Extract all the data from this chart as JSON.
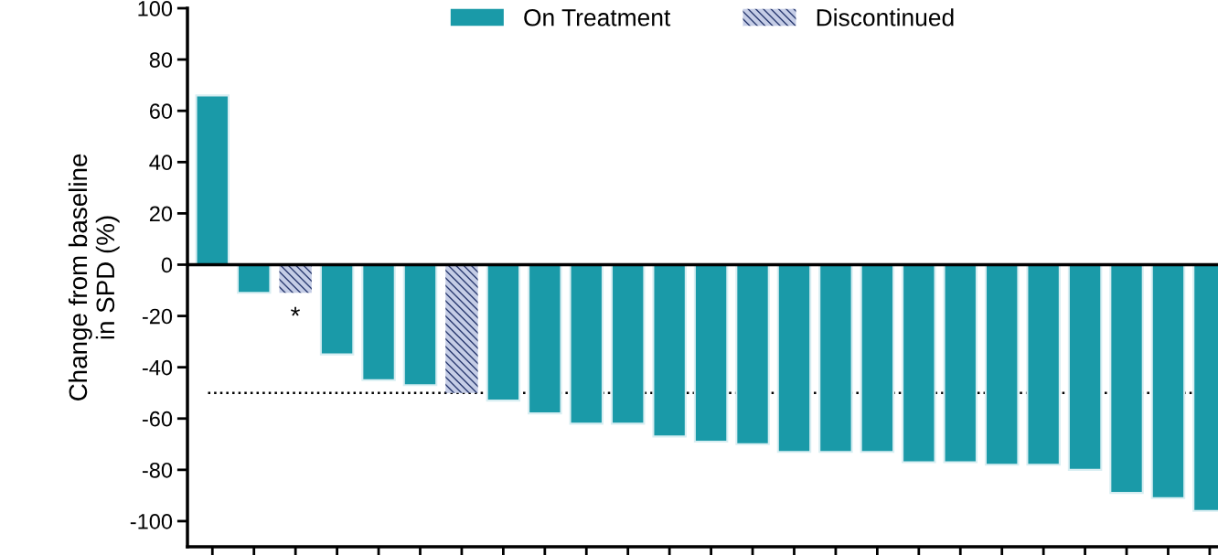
{
  "chart_data": {
    "type": "bar",
    "ylabel": "Change from baseline\nin SPD (%)",
    "categories": [
      null,
      null,
      null,
      null,
      null,
      null,
      null,
      null,
      null,
      null,
      null,
      null,
      null,
      null,
      null,
      null,
      null,
      null,
      null,
      null,
      null,
      null,
      null,
      null,
      null
    ],
    "series": [
      {
        "name": "On Treatment",
        "color": "#1a9aa8",
        "values": [
          66,
          -11,
          null,
          -35,
          -45,
          -47,
          null,
          -53,
          -58,
          -62,
          -62,
          -67,
          -69,
          -70,
          -73,
          -73,
          -73,
          -77,
          -77,
          -78,
          -78,
          -80,
          -89,
          -91,
          -96
        ]
      },
      {
        "name": "Discontinued",
        "color": "#c5cde6",
        "values": [
          null,
          null,
          -11,
          null,
          null,
          null,
          -50,
          null,
          null,
          null,
          null,
          null,
          null,
          null,
          null,
          null,
          null,
          null,
          null,
          null,
          null,
          null,
          null,
          null,
          null
        ]
      }
    ],
    "ylim": [
      -110,
      100
    ],
    "yticks": [
      -100,
      -80,
      -60,
      -40,
      -20,
      0,
      20,
      40,
      60,
      80,
      100
    ],
    "ref_lines": [
      {
        "axis": "y",
        "value": 0,
        "color": "#000000",
        "line_style": "solid"
      },
      {
        "axis": "y",
        "value": -50,
        "color": "#000000",
        "line_style": "dotted"
      }
    ],
    "annotations": [
      "*"
    ],
    "tick_labels": "y",
    "legend": "top",
    "grid": false
  }
}
